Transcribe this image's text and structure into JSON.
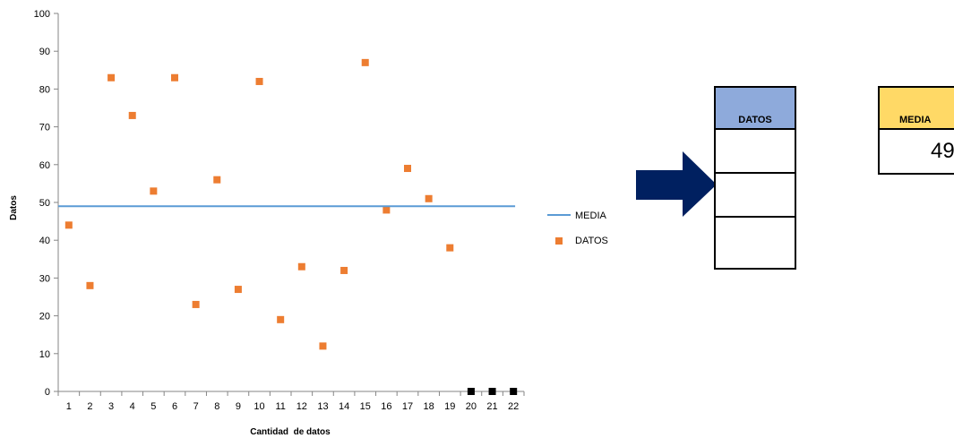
{
  "chart_data": {
    "type": "scatter",
    "xlabel": "Cantidad  de datos",
    "ylabel": "Datos",
    "ylim": [
      0,
      100
    ],
    "yticks": [
      0,
      10,
      20,
      30,
      40,
      50,
      60,
      70,
      80,
      90,
      100
    ],
    "categories": [
      "1",
      "2",
      "3",
      "4",
      "5",
      "6",
      "7",
      "8",
      "9",
      "10",
      "11",
      "12",
      "13",
      "14",
      "15",
      "16",
      "17",
      "18",
      "19",
      "20",
      "21",
      "22"
    ],
    "series": [
      {
        "name": "DATOS",
        "color": "#ed7d31",
        "x": [
          1,
          2,
          3,
          4,
          5,
          6,
          7,
          8,
          9,
          10,
          11,
          12,
          13,
          14,
          15,
          16,
          17,
          18,
          19
        ],
        "y": [
          44,
          28,
          83,
          73,
          53,
          83,
          23,
          56,
          27,
          82,
          19,
          33,
          12,
          32,
          87,
          48,
          59,
          51,
          38
        ]
      },
      {
        "name": "MEDIA",
        "color": "#5b9bd5",
        "x": [
          1,
          22
        ],
        "y": [
          49,
          49
        ]
      },
      {
        "color": "#000000",
        "x": [
          20,
          21,
          22
        ],
        "y": [
          0,
          0,
          0
        ]
      }
    ],
    "legend": [
      "MEDIA",
      "DATOS"
    ],
    "legend_position": "right"
  },
  "datos_table": {
    "header": "DATOS",
    "rows": [
      "",
      "",
      ""
    ]
  },
  "media_box": {
    "header": "MEDIA",
    "value": "49"
  },
  "arrow": {
    "color": "#002060",
    "icon": "right-arrow-icon"
  }
}
